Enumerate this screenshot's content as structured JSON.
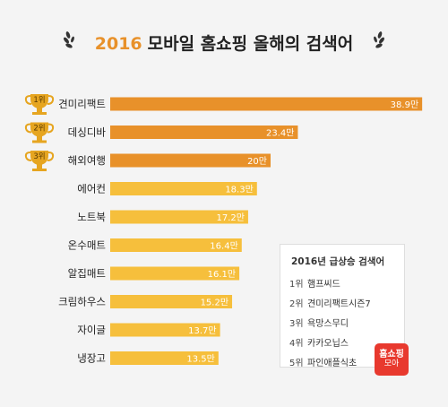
{
  "title_year": "2016",
  "title_rest": "모바일 홈쇼핑 올해의 검색어",
  "chart_data": {
    "type": "bar",
    "orientation": "horizontal",
    "categories": [
      "견미리팩트",
      "데싱디바",
      "해외여행",
      "에어컨",
      "노트북",
      "온수매트",
      "알집매트",
      "크림하우스",
      "자이글",
      "냉장고"
    ],
    "values": [
      38.9,
      23.4,
      20.0,
      18.3,
      17.2,
      16.4,
      16.1,
      15.2,
      13.7,
      13.5
    ],
    "value_labels": [
      "38.9만",
      "23.4만",
      "20만",
      "18.3만",
      "17.2만",
      "16.4만",
      "16.1만",
      "15.2만",
      "13.7만",
      "13.5만"
    ],
    "rank_badges": [
      "1위",
      "2위",
      "3위"
    ],
    "colors": {
      "top3": "#e8912a",
      "rest": "#f6bf3c",
      "trophy": "#e6a520"
    }
  },
  "surge_box": {
    "title": "2016년 급상승 검색어",
    "items": [
      {
        "rank": "1위",
        "term": "햄프씨드"
      },
      {
        "rank": "2위",
        "term": "견미리팩트시즌7"
      },
      {
        "rank": "3위",
        "term": "욕망스무디"
      },
      {
        "rank": "4위",
        "term": "카카오닙스"
      },
      {
        "rank": "5위",
        "term": "파인애플식초"
      }
    ]
  },
  "logo": {
    "line1": "홈쇼핑",
    "line2": "모아"
  }
}
